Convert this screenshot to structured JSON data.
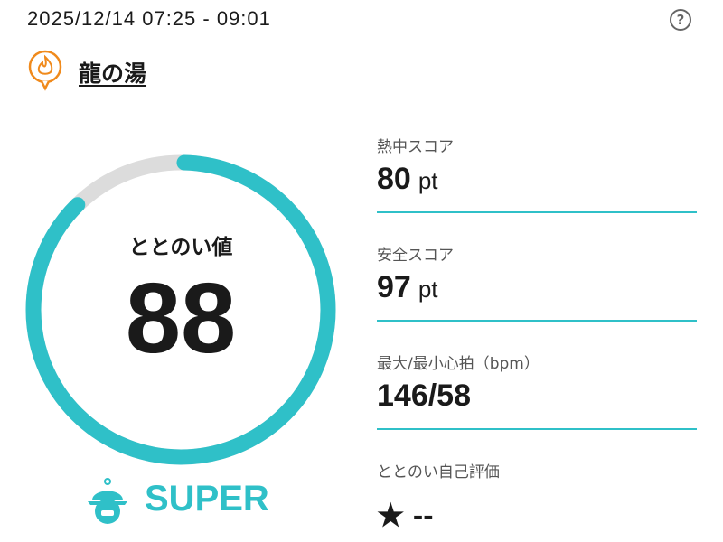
{
  "header": {
    "datetime": "2025/12/14 07:25 - 09:01",
    "help_icon": "question-circle-icon"
  },
  "facility": {
    "name": "龍の湯",
    "icon": "sauna-flame-pin-icon",
    "icon_color": "#f08a1c"
  },
  "totonoi": {
    "label": "ととのい値",
    "value": "88",
    "progress_percent": 88,
    "ring_color": "#2fc0c8",
    "track_color": "#dcdcdc"
  },
  "rank": {
    "label": "SUPER",
    "icon": "bell-helmet-icon",
    "color": "#2fc0c8"
  },
  "stats": [
    {
      "label": "熱中スコア",
      "value": "80",
      "unit": "pt"
    },
    {
      "label": "安全スコア",
      "value": "97",
      "unit": "pt"
    },
    {
      "label": "最大/最小心拍（bpm）",
      "value": "146/58",
      "unit": ""
    },
    {
      "label": "ととのい自己評価",
      "value": "★ --",
      "unit": ""
    }
  ]
}
